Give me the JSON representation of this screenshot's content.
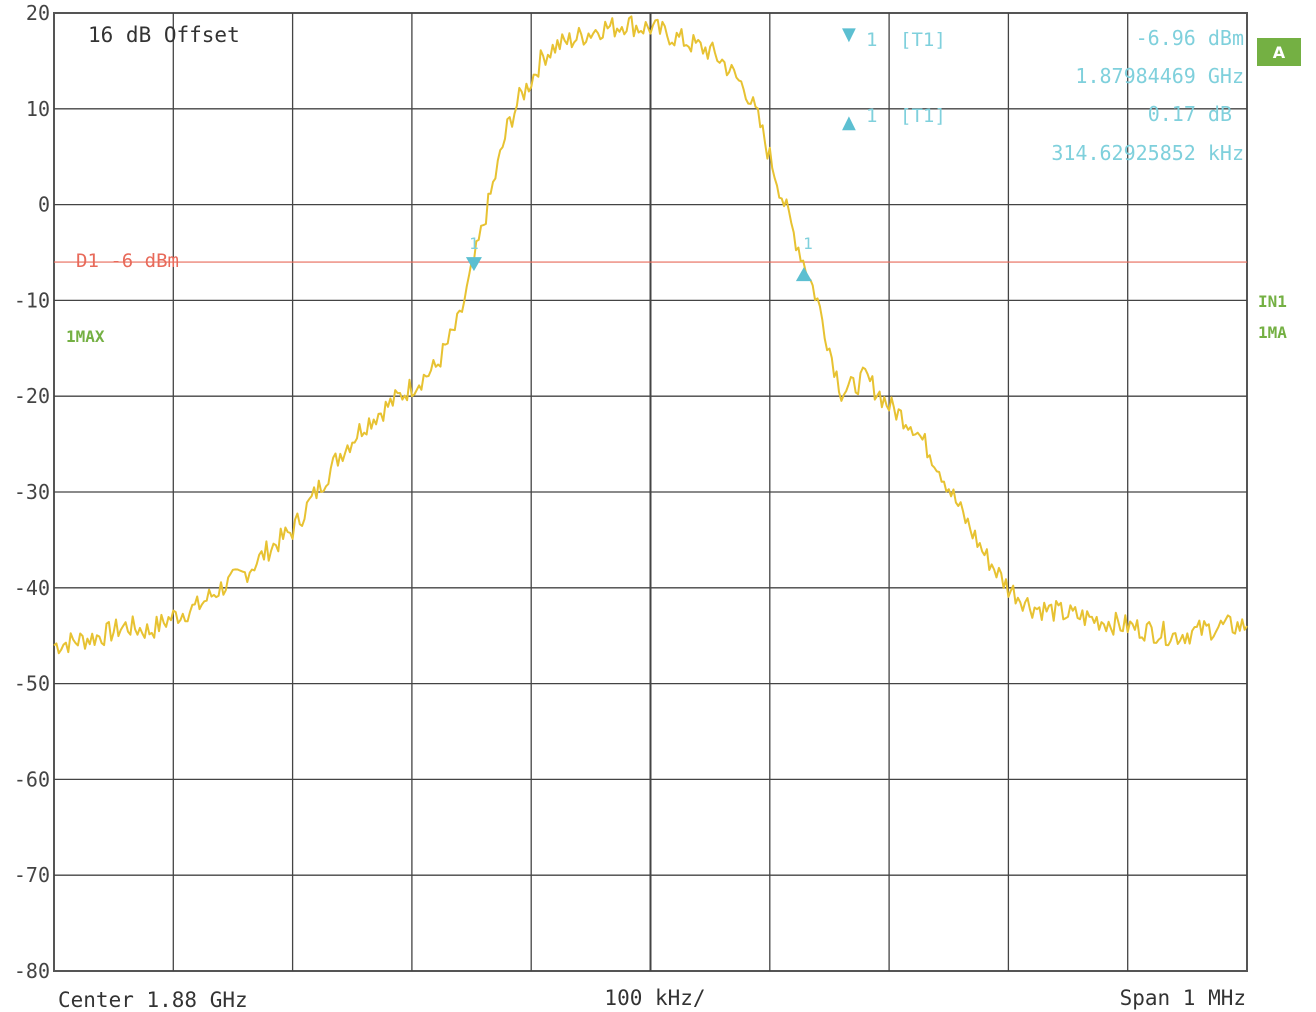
{
  "chart_data": {
    "type": "line",
    "title": "",
    "xlabel": "",
    "ylabel": "",
    "ylim": [
      -80,
      20
    ],
    "y_ticks": [
      20,
      10,
      0,
      -10,
      -20,
      -30,
      -40,
      -50,
      -60,
      -70,
      -80
    ],
    "x_divisions": 10,
    "offset_label": "16 dB Offset",
    "center_label": "Center 1.88 GHz",
    "per_div_label": "100 kHz/",
    "span_label": "Span 1 MHz",
    "display_line": {
      "label": "D1 -6 dBm",
      "value": -6,
      "color": "#e86a5a"
    },
    "trace_label": "1MAX",
    "trace_color": "#e7c232",
    "side_labels": {
      "input": "IN1",
      "mode": "1MA",
      "badge": "A"
    },
    "markers": {
      "m1": {
        "symbol": "▼",
        "number": "1",
        "tag": "[T1]",
        "level": "-6.96 dBm",
        "freq": "1.87984469 GHz"
      },
      "delta": {
        "symbol": "▲",
        "number": "1",
        "tag": "[T1]",
        "level": "0.17 dB",
        "freq": "314.62925852 kHz"
      },
      "m1_trace_label": "1",
      "delta_trace_label": "1"
    },
    "series": [
      {
        "x": [
          -500,
          -480,
          -460,
          -440,
          -420,
          -400,
          -380,
          -360,
          -340,
          -320,
          -300,
          -280,
          -260,
          -240,
          -220,
          -200,
          -180,
          -160,
          -150,
          -140,
          -130,
          -120,
          -110,
          -100,
          -90,
          -80,
          -70,
          -60,
          -50,
          -40,
          -30,
          -20,
          -10,
          0,
          10,
          20,
          30,
          40,
          50,
          60,
          70,
          80,
          90,
          100,
          110,
          120,
          130,
          140,
          150,
          160,
          170,
          180,
          200,
          220,
          240,
          260,
          280,
          300,
          320,
          340,
          360,
          380,
          400,
          420,
          440,
          460,
          480,
          500
        ],
        "y": [
          -46,
          -45.5,
          -45,
          -44,
          -44.5,
          -43,
          -42,
          -40,
          -38.5,
          -36,
          -34,
          -30,
          -26,
          -23,
          -21,
          -19,
          -17,
          -12,
          -7,
          -2,
          3,
          8,
          11,
          13,
          15.5,
          16.5,
          17,
          17.5,
          18,
          18.5,
          18.5,
          19,
          18.5,
          18.5,
          18,
          17.5,
          17,
          16.5,
          16,
          15,
          13.5,
          12,
          9,
          5,
          1,
          -3,
          -6.5,
          -10,
          -15,
          -19.5,
          -19,
          -18,
          -21,
          -23,
          -27,
          -32,
          -36.5,
          -40,
          -42,
          -42.5,
          -43,
          -43.5,
          -44,
          -44.5,
          -45,
          -44.5,
          -44,
          -44
        ]
      }
    ]
  }
}
